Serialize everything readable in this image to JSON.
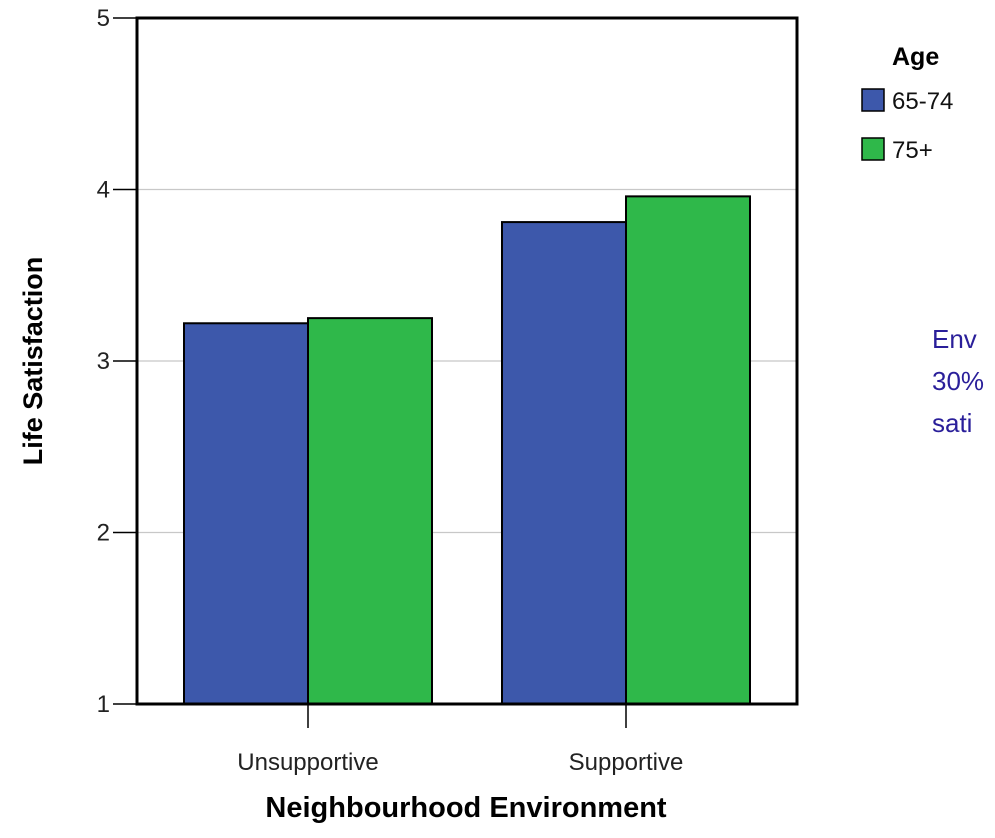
{
  "chart_data": {
    "type": "bar",
    "xlabel": "Neighbourhood Environment",
    "ylabel": "Life Satisfaction",
    "categories": [
      "Unsupportive",
      "Supportive"
    ],
    "series": [
      {
        "name": "65-74",
        "values": [
          3.22,
          3.81
        ],
        "color": "#3d58ab"
      },
      {
        "name": "75+",
        "values": [
          3.25,
          3.96
        ],
        "color": "#2fb84a"
      }
    ],
    "ylim": [
      1,
      5
    ],
    "yticks": [
      "1",
      "2",
      "3",
      "4",
      "5"
    ],
    "grid": true,
    "legend": {
      "title": "Age",
      "position": "top-right"
    }
  },
  "annotation": {
    "lines": [
      "Env",
      "30%",
      "sati"
    ]
  }
}
